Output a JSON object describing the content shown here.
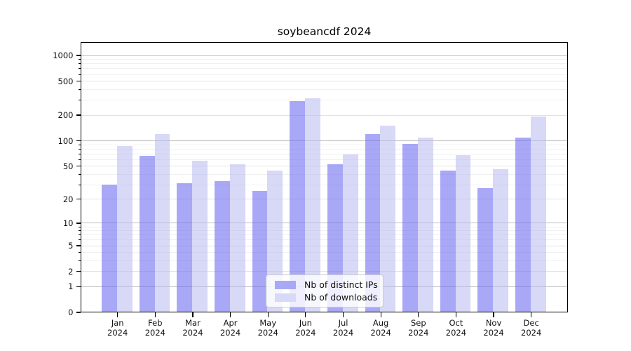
{
  "title": "soybeancdf 2024",
  "chart_data": {
    "type": "bar",
    "title": "soybeancdf 2024",
    "categories": [
      "Jan",
      "Feb",
      "Mar",
      "Apr",
      "May",
      "Jun",
      "Jul",
      "Aug",
      "Sep",
      "Oct",
      "Nov",
      "Dec"
    ],
    "year": "2024",
    "series": [
      {
        "name": "Nb of distinct IPs",
        "values": [
          30,
          66,
          31,
          33,
          25,
          293,
          53,
          120,
          92,
          44,
          27,
          110
        ],
        "color": "#a8a8f7",
        "fill_rgba": "rgba(110,110,242,0.6)"
      },
      {
        "name": "Nb of downloads",
        "values": [
          87,
          121,
          58,
          53,
          44,
          313,
          69,
          151,
          110,
          68,
          46,
          192
        ],
        "color": "#d8d8f7",
        "fill_rgba": "rgba(184,184,240,0.55)"
      }
    ],
    "y_axis": {
      "scale": "log10(value+1)",
      "ticks": [
        0,
        1,
        2,
        5,
        10,
        20,
        50,
        100,
        200,
        500,
        1000
      ],
      "minor_ticks": [
        3,
        4,
        6,
        7,
        8,
        9,
        30,
        40,
        60,
        70,
        80,
        90,
        300,
        400,
        600,
        700,
        800,
        900
      ],
      "range": [
        0,
        1430
      ]
    },
    "grid": "on",
    "legend_position": "lower-center",
    "grid_colors": {
      "major": "#bfbfbf",
      "labeled": "#e2e2e2",
      "minor": "#f0f0f0"
    }
  }
}
